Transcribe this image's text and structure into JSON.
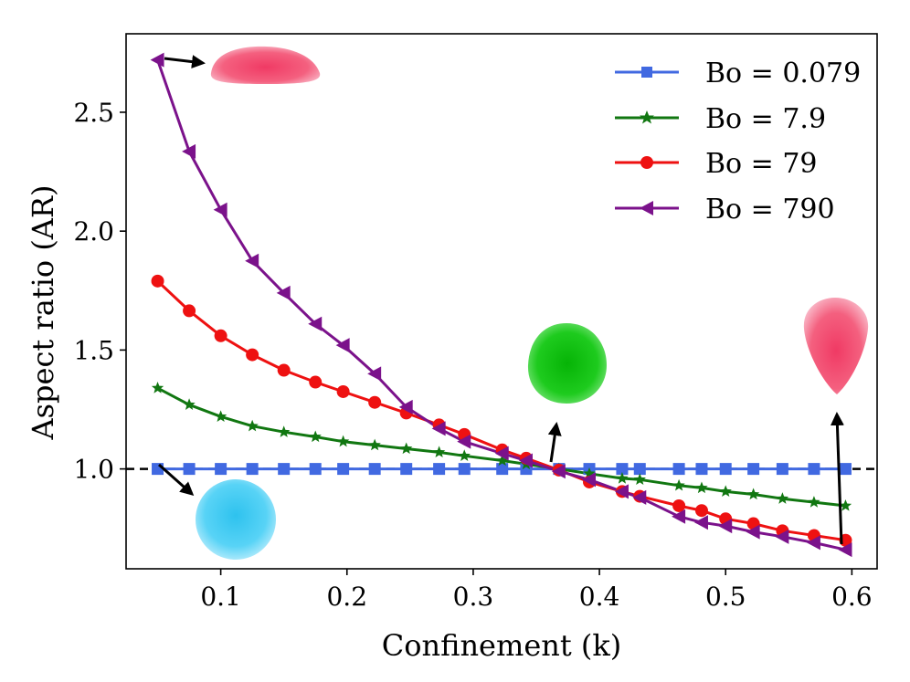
{
  "chart_data": {
    "type": "line",
    "title": "",
    "xlabel": "Confinement (k)",
    "ylabel": "Aspect ratio (AR)",
    "xlim": [
      0.025,
      0.62
    ],
    "ylim": [
      0.58,
      2.83
    ],
    "xticks": [
      0.1,
      0.2,
      0.3,
      0.4,
      0.5,
      0.6
    ],
    "xtick_labels": [
      "0.1",
      "0.2",
      "0.3",
      "0.4",
      "0.5",
      "0.6"
    ],
    "yticks": [
      1.0,
      1.5,
      2.0,
      2.5
    ],
    "ytick_labels": [
      "1.0",
      "1.5",
      "2.0",
      "2.5"
    ],
    "legend_position": "top-right",
    "reference_line": {
      "y": 1.0,
      "style": "dashed",
      "color": "#000000"
    },
    "series": [
      {
        "name": "Bo = 0.079",
        "color": "#4169E1",
        "marker": "square",
        "x": [
          0.05,
          0.075,
          0.1,
          0.125,
          0.15,
          0.175,
          0.197,
          0.222,
          0.247,
          0.273,
          0.293,
          0.323,
          0.342,
          0.368,
          0.392,
          0.418,
          0.432,
          0.463,
          0.481,
          0.5,
          0.522,
          0.545,
          0.57,
          0.595
        ],
        "y": [
          1.0,
          1.0,
          1.0,
          1.0,
          1.0,
          1.0,
          1.0,
          1.0,
          1.0,
          1.0,
          1.0,
          1.0,
          1.0,
          1.0,
          1.0,
          1.0,
          1.0,
          1.0,
          1.0,
          1.0,
          1.0,
          1.0,
          1.0,
          1.0
        ]
      },
      {
        "name": "Bo = 7.9",
        "color": "#117711",
        "marker": "star",
        "x": [
          0.05,
          0.075,
          0.1,
          0.125,
          0.15,
          0.175,
          0.197,
          0.222,
          0.247,
          0.273,
          0.293,
          0.323,
          0.342,
          0.368,
          0.392,
          0.418,
          0.432,
          0.463,
          0.481,
          0.5,
          0.522,
          0.545,
          0.57,
          0.595
        ],
        "y": [
          1.34,
          1.27,
          1.22,
          1.18,
          1.155,
          1.135,
          1.115,
          1.1,
          1.085,
          1.07,
          1.055,
          1.035,
          1.02,
          1.0,
          0.98,
          0.96,
          0.955,
          0.93,
          0.92,
          0.905,
          0.893,
          0.875,
          0.86,
          0.845
        ]
      },
      {
        "name": "Bo = 79",
        "color": "#EE1111",
        "marker": "circle",
        "x": [
          0.05,
          0.075,
          0.1,
          0.125,
          0.15,
          0.175,
          0.197,
          0.222,
          0.247,
          0.273,
          0.293,
          0.323,
          0.342,
          0.368,
          0.392,
          0.418,
          0.432,
          0.463,
          0.481,
          0.5,
          0.522,
          0.545,
          0.57,
          0.595
        ],
        "y": [
          1.79,
          1.665,
          1.56,
          1.48,
          1.415,
          1.365,
          1.325,
          1.28,
          1.235,
          1.185,
          1.145,
          1.08,
          1.045,
          0.995,
          0.945,
          0.905,
          0.885,
          0.845,
          0.825,
          0.79,
          0.77,
          0.74,
          0.72,
          0.7
        ]
      },
      {
        "name": "Bo = 790",
        "color": "#7B128B",
        "marker": "triangle-left",
        "x": [
          0.05,
          0.075,
          0.1,
          0.125,
          0.15,
          0.175,
          0.197,
          0.222,
          0.247,
          0.273,
          0.293,
          0.323,
          0.342,
          0.368,
          0.392,
          0.418,
          0.432,
          0.463,
          0.481,
          0.5,
          0.522,
          0.545,
          0.57,
          0.595
        ],
        "y": [
          2.72,
          2.335,
          2.09,
          1.875,
          1.74,
          1.61,
          1.52,
          1.4,
          1.26,
          1.17,
          1.115,
          1.065,
          1.035,
          0.99,
          0.955,
          0.905,
          0.88,
          0.8,
          0.775,
          0.76,
          0.735,
          0.715,
          0.69,
          0.66
        ]
      }
    ],
    "annotations": [
      {
        "name": "spherical-drop-icon",
        "shape": "sphere",
        "color": "#33CCF2"
      },
      {
        "name": "flattened-drop-icon",
        "shape": "flattened",
        "color": "#F2557A"
      },
      {
        "name": "round-green-drop-icon",
        "shape": "near-spherical",
        "color": "#14C814"
      },
      {
        "name": "elongated-drop-icon",
        "shape": "elongated",
        "color": "#F2557A"
      }
    ]
  }
}
